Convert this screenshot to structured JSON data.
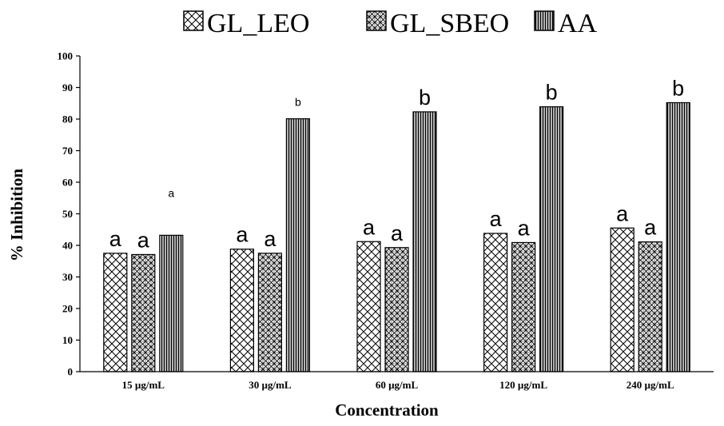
{
  "chart_data": {
    "type": "bar",
    "title": "",
    "xlabel": "Concentration",
    "ylabel": "% Inhibition",
    "ylim": [
      0,
      100
    ],
    "yticks": [
      0,
      10,
      20,
      30,
      40,
      50,
      60,
      70,
      80,
      90,
      100
    ],
    "categories": [
      "15 µg/mL",
      "30 µg/mL",
      "60 µg/mL",
      "120  µg/mL",
      "240 µg/mL"
    ],
    "legend_position": "top",
    "grid": false,
    "series": [
      {
        "name": "GL_LEO",
        "pattern": "crosshatch",
        "values": [
          37.5,
          38.8,
          41.2,
          43.8,
          45.5
        ],
        "labels": [
          "a",
          "a",
          "a",
          "a",
          "a"
        ]
      },
      {
        "name": "GL_SBEO",
        "pattern": "diagonal-check",
        "values": [
          37.1,
          37.5,
          39.3,
          40.9,
          41.1
        ],
        "labels": [
          "a",
          "a",
          "a",
          "a",
          "a"
        ]
      },
      {
        "name": "AA",
        "pattern": "vertical-lines",
        "values": [
          43.2,
          80.1,
          82.3,
          83.9,
          85.2
        ],
        "labels": [
          "a",
          "b",
          "b",
          "b",
          "b"
        ]
      }
    ],
    "small_label_indices": {
      "AA": [
        0,
        1
      ]
    }
  }
}
